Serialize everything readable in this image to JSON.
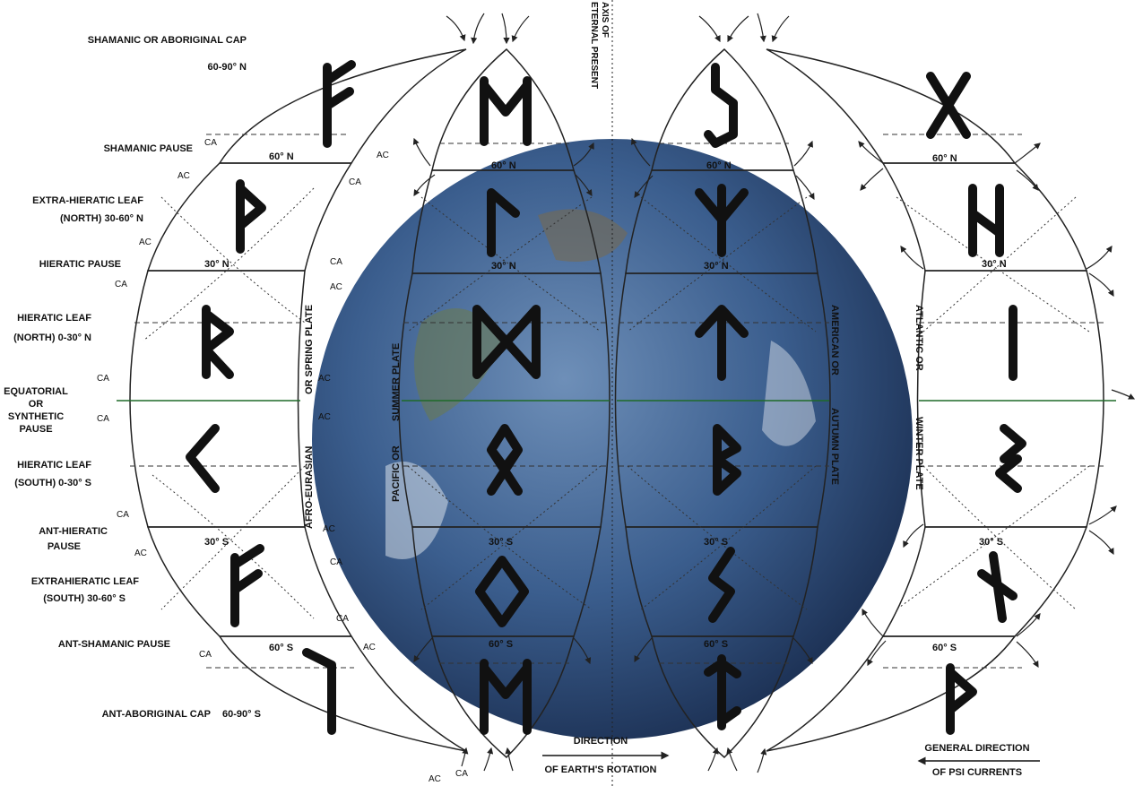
{
  "left_labels": {
    "cap_north": "SHAMANIC OR ABORIGINAL CAP",
    "cap_north_range": "60-90° N",
    "shamanic_pause": "SHAMANIC PAUSE",
    "extra_hieratic_north_1": "EXTRA-HIERATIC LEAF",
    "extra_hieratic_north_2": "(NORTH) 30-60° N",
    "hieratic_pause": "HIERATIC PAUSE",
    "hieratic_leaf_north_1": "HIERATIC LEAF",
    "hieratic_leaf_north_2": "(NORTH) 0-30° N",
    "equatorial_1": "EQUATORIAL",
    "equatorial_2": "OR",
    "equatorial_3": "SYNTHETIC",
    "equatorial_4": "PAUSE",
    "hieratic_leaf_south_1": "HIERATIC LEAF",
    "hieratic_leaf_south_2": "(SOUTH) 0-30° S",
    "ant_hieratic_1": "ANT-HIERATIC",
    "ant_hieratic_2": "PAUSE",
    "extrahieratic_south_1": "EXTRAHIERATIC LEAF",
    "extrahieratic_south_2": "(SOUTH) 30-60° S",
    "ant_shamanic_pause": "ANT-SHAMANIC PAUSE",
    "ant_aboriginal_cap": "ANT-ABORIGINAL CAP",
    "ant_aboriginal_range": "60-90° S"
  },
  "axis_label_1": "AXIS OF",
  "axis_label_2": "ETERNAL PRESENT",
  "rotation_label_1": "DIRECTION",
  "rotation_label_2": "OF EARTH'S ROTATION",
  "psi_label_1": "GENERAL DIRECTION",
  "psi_label_2": "OF PSI CURRENTS",
  "plates": {
    "afro_eurasian_1": "AFRO-EURASIAN",
    "afro_eurasian_2": "OR SPRING PLATE",
    "pacific_1": "PACIFIC OR",
    "pacific_2": "SUMMER PLATE",
    "american_1": "AMERICAN OR",
    "american_2": "AUTUMN PLATE",
    "atlantic_1": "ATLANTIC OR",
    "atlantic_2": "WINTER PLATE"
  },
  "latitudes": {
    "n60": "60° N",
    "n30": "30° N",
    "s30": "30° S",
    "s60": "60° S"
  },
  "currents": {
    "ca": "CA",
    "ac": "AC"
  },
  "colors": {
    "cap": "#b0206e",
    "temperate": "#f5ec5a",
    "equator_green": "#2e9a3c",
    "hieratic_red": "#c8401e"
  }
}
